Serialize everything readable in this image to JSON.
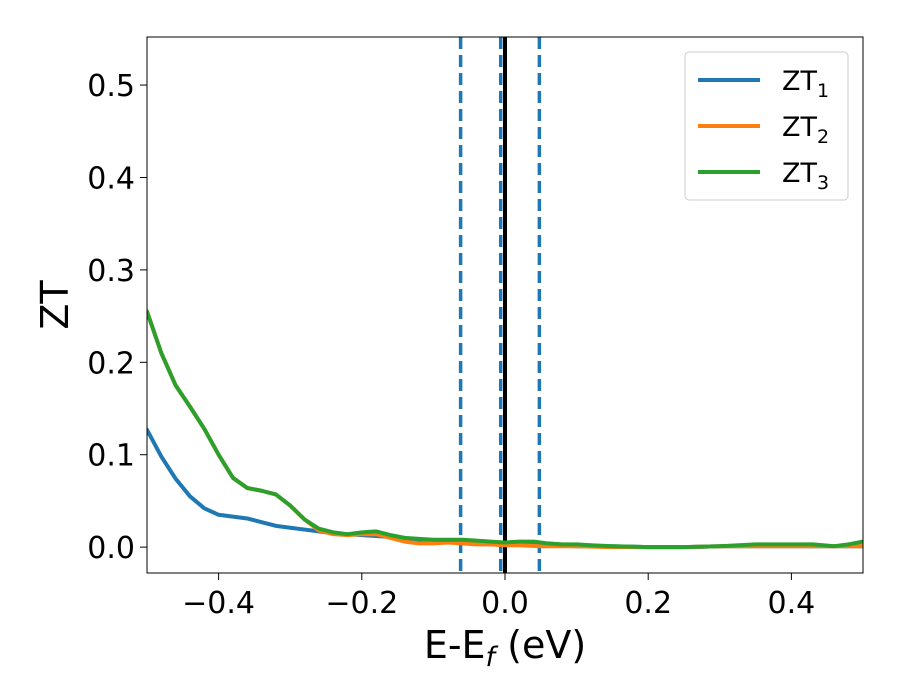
{
  "chart_data": {
    "type": "line",
    "title": "",
    "xlabel": {
      "main": "E-E",
      "sub": "f",
      "unit": " (eV)"
    },
    "ylabel": "ZT",
    "xlim": [
      -0.5,
      0.5
    ],
    "ylim": [
      -0.028,
      0.552
    ],
    "x_ticks": [
      -0.4,
      -0.2,
      0.0,
      0.2,
      0.4
    ],
    "x_tick_labels": [
      "−0.4",
      "−0.2",
      "0.0",
      "0.2",
      "0.4"
    ],
    "y_ticks": [
      0.0,
      0.1,
      0.2,
      0.3,
      0.4,
      0.5
    ],
    "y_tick_labels": [
      "0.0",
      "0.1",
      "0.2",
      "0.3",
      "0.4",
      "0.5"
    ],
    "grid": false,
    "legend_position": "top-right",
    "vertical_lines": [
      {
        "x": -0.062,
        "style": "dashed",
        "color": "#1f77b4"
      },
      {
        "x": -0.006,
        "style": "dashed",
        "color": "#1f77b4"
      },
      {
        "x": 0.048,
        "style": "dashed",
        "color": "#1f77b4"
      },
      {
        "x": 0.0,
        "style": "solid",
        "color": "#000000"
      }
    ],
    "series": [
      {
        "name": "ZT",
        "sub": "1",
        "color": "#1f77b4",
        "points": [
          [
            -0.5,
            0.127
          ],
          [
            -0.48,
            0.098
          ],
          [
            -0.46,
            0.074
          ],
          [
            -0.44,
            0.055
          ],
          [
            -0.42,
            0.042
          ],
          [
            -0.4,
            0.035
          ],
          [
            -0.38,
            0.033
          ],
          [
            -0.36,
            0.031
          ],
          [
            -0.34,
            0.027
          ],
          [
            -0.32,
            0.023
          ],
          [
            -0.3,
            0.021
          ],
          [
            -0.28,
            0.019
          ],
          [
            -0.26,
            0.017
          ],
          [
            -0.24,
            0.015
          ],
          [
            -0.22,
            0.014
          ],
          [
            -0.2,
            0.013
          ],
          [
            -0.18,
            0.012
          ],
          [
            -0.16,
            0.011
          ],
          [
            -0.14,
            0.009
          ],
          [
            -0.12,
            0.008
          ],
          [
            -0.1,
            0.007
          ],
          [
            -0.08,
            0.006
          ],
          [
            -0.06,
            0.005
          ],
          [
            -0.04,
            0.004
          ],
          [
            -0.02,
            0.003
          ],
          [
            0.0,
            0.003
          ],
          [
            0.05,
            0.002
          ],
          [
            0.1,
            0.001
          ],
          [
            0.15,
            0.001
          ],
          [
            0.2,
            0.0
          ],
          [
            0.25,
            0.0
          ],
          [
            0.3,
            0.001
          ],
          [
            0.35,
            0.001
          ],
          [
            0.4,
            0.001
          ],
          [
            0.45,
            0.001
          ],
          [
            0.5,
            0.001
          ]
        ]
      },
      {
        "name": "ZT",
        "sub": "2",
        "color": "#ff7f0e",
        "points": [
          [
            -0.5,
            0.255
          ],
          [
            -0.48,
            0.21
          ],
          [
            -0.46,
            0.175
          ],
          [
            -0.44,
            0.152
          ],
          [
            -0.42,
            0.128
          ],
          [
            -0.4,
            0.1
          ],
          [
            -0.38,
            0.075
          ],
          [
            -0.36,
            0.064
          ],
          [
            -0.34,
            0.061
          ],
          [
            -0.32,
            0.057
          ],
          [
            -0.3,
            0.045
          ],
          [
            -0.28,
            0.03
          ],
          [
            -0.26,
            0.018
          ],
          [
            -0.24,
            0.014
          ],
          [
            -0.22,
            0.013
          ],
          [
            -0.2,
            0.014
          ],
          [
            -0.18,
            0.014
          ],
          [
            -0.16,
            0.01
          ],
          [
            -0.14,
            0.006
          ],
          [
            -0.12,
            0.004
          ],
          [
            -0.1,
            0.004
          ],
          [
            -0.08,
            0.005
          ],
          [
            -0.06,
            0.004
          ],
          [
            -0.04,
            0.003
          ],
          [
            -0.02,
            0.003
          ],
          [
            0.0,
            0.002
          ],
          [
            0.02,
            0.002
          ],
          [
            0.05,
            0.001
          ],
          [
            0.1,
            0.001
          ],
          [
            0.15,
            0.0
          ],
          [
            0.2,
            0.0
          ],
          [
            0.25,
            0.0
          ],
          [
            0.3,
            0.001
          ],
          [
            0.35,
            0.001
          ],
          [
            0.4,
            0.001
          ],
          [
            0.45,
            0.001
          ],
          [
            0.5,
            0.001
          ]
        ]
      },
      {
        "name": "ZT",
        "sub": "3",
        "color": "#2ca02c",
        "points": [
          [
            -0.5,
            0.255
          ],
          [
            -0.48,
            0.21
          ],
          [
            -0.46,
            0.175
          ],
          [
            -0.44,
            0.152
          ],
          [
            -0.42,
            0.128
          ],
          [
            -0.4,
            0.1
          ],
          [
            -0.38,
            0.075
          ],
          [
            -0.36,
            0.064
          ],
          [
            -0.34,
            0.061
          ],
          [
            -0.32,
            0.057
          ],
          [
            -0.3,
            0.045
          ],
          [
            -0.28,
            0.03
          ],
          [
            -0.26,
            0.02
          ],
          [
            -0.24,
            0.016
          ],
          [
            -0.22,
            0.014
          ],
          [
            -0.2,
            0.016
          ],
          [
            -0.18,
            0.017
          ],
          [
            -0.16,
            0.013
          ],
          [
            -0.14,
            0.01
          ],
          [
            -0.12,
            0.009
          ],
          [
            -0.1,
            0.008
          ],
          [
            -0.08,
            0.008
          ],
          [
            -0.06,
            0.008
          ],
          [
            -0.04,
            0.007
          ],
          [
            -0.02,
            0.006
          ],
          [
            0.0,
            0.005
          ],
          [
            0.02,
            0.006
          ],
          [
            0.04,
            0.006
          ],
          [
            0.06,
            0.004
          ],
          [
            0.08,
            0.003
          ],
          [
            0.1,
            0.003
          ],
          [
            0.12,
            0.002
          ],
          [
            0.15,
            0.001
          ],
          [
            0.2,
            0.0
          ],
          [
            0.25,
            0.0
          ],
          [
            0.3,
            0.001
          ],
          [
            0.35,
            0.003
          ],
          [
            0.4,
            0.003
          ],
          [
            0.43,
            0.003
          ],
          [
            0.46,
            0.001
          ],
          [
            0.48,
            0.003
          ],
          [
            0.5,
            0.006
          ]
        ]
      }
    ]
  }
}
